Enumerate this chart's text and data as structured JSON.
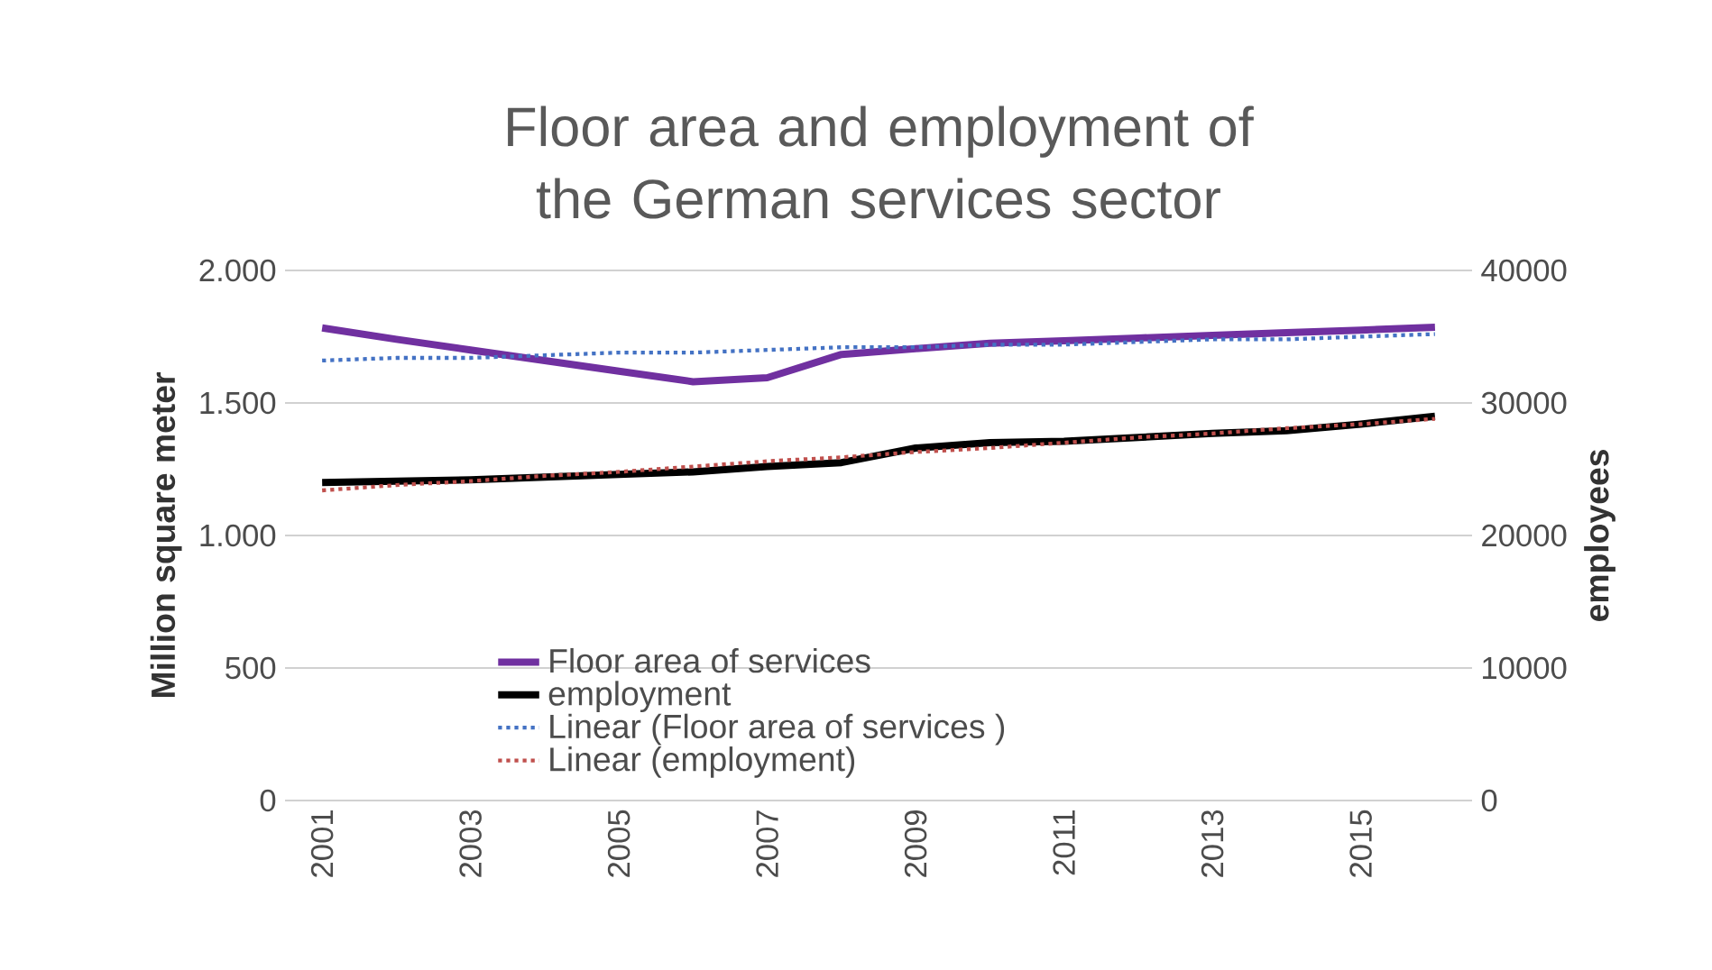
{
  "chart_data": {
    "type": "line",
    "title": "Floor area and employment of the German services sector",
    "ylabel": "Million square meter",
    "y2label": "employees",
    "x": [
      2001,
      2002,
      2003,
      2004,
      2005,
      2006,
      2007,
      2008,
      2009,
      2010,
      2011,
      2012,
      2013,
      2014,
      2015,
      2016
    ],
    "xlim": [
      2000.5,
      2016.5
    ],
    "xticks": [
      {
        "value": 2001,
        "label": "2001"
      },
      {
        "value": 2003,
        "label": "2003"
      },
      {
        "value": 2005,
        "label": "2005"
      },
      {
        "value": 2007,
        "label": "2007"
      },
      {
        "value": 2009,
        "label": "2009"
      },
      {
        "value": 2011,
        "label": "2011"
      },
      {
        "value": 2013,
        "label": "2013"
      },
      {
        "value": 2015,
        "label": "2015"
      }
    ],
    "ylim": [
      0,
      2000
    ],
    "yticks": [
      {
        "value": 0,
        "label": "0"
      },
      {
        "value": 500,
        "label": "500"
      },
      {
        "value": 1000,
        "label": "1.000"
      },
      {
        "value": 1500,
        "label": "1.500"
      },
      {
        "value": 2000,
        "label": "2.000"
      }
    ],
    "y2lim": [
      0,
      40000
    ],
    "y2ticks": [
      0,
      10000,
      20000,
      30000,
      40000
    ],
    "grid": "y",
    "legend": "bottom left",
    "marker": "none",
    "series": [
      {
        "name": "Floor area of services",
        "color": "#7030a0",
        "line_style": "solid",
        "values": [
          1783,
          1740,
          1700,
          1660,
          1620,
          1580,
          1595,
          1683,
          1705,
          1725,
          1735,
          1745,
          1755,
          1765,
          1775,
          1786
        ]
      },
      {
        "name": "employment",
        "color": "#000000",
        "line_style": "solid",
        "axis": "y2",
        "values": [
          24000,
          24100,
          24200,
          24400,
          24600,
          24800,
          25200,
          25500,
          26600,
          27000,
          27100,
          27400,
          27700,
          27900,
          28400,
          29000
        ]
      },
      {
        "name": "Linear (Floor area of services )",
        "color": "#4472c4",
        "line_style": "dotted",
        "type": "line",
        "values": [
          1660,
          1670,
          1670,
          1680,
          1690,
          1690,
          1700,
          1710,
          1710,
          1720,
          1720,
          1730,
          1740,
          1740,
          1750,
          1760
        ]
      },
      {
        "name": "Linear (employment)",
        "color": "#c0504d",
        "line_style": "dotted",
        "type": "line",
        "axis": "y2",
        "values": [
          23400,
          23800,
          24100,
          24500,
          24800,
          25200,
          25600,
          25900,
          26300,
          26600,
          27000,
          27400,
          27700,
          28100,
          28400,
          28800
        ]
      }
    ]
  }
}
